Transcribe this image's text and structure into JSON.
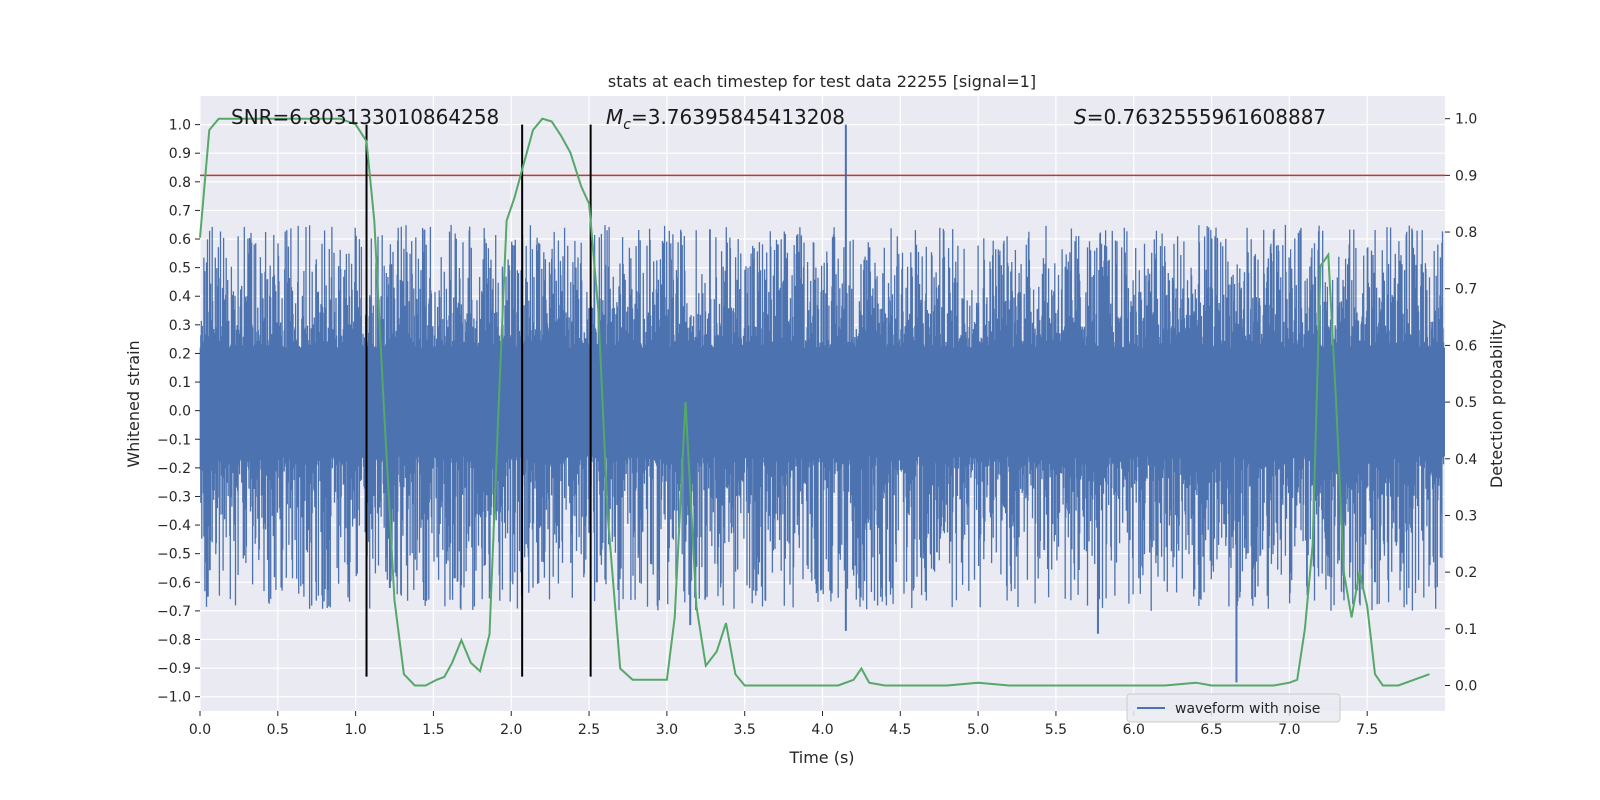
{
  "chart_data": {
    "type": "line",
    "title": "stats at each timestep for test data 22255 [signal=1]",
    "xlabel": "Time (s)",
    "ylabel": "Whitened strain",
    "y2label": "Detection probability",
    "xlim": [
      0.0,
      8.0
    ],
    "ylim": [
      -1.05,
      1.1
    ],
    "y2lim": [
      -0.045,
      1.04
    ],
    "x_ticks": [
      0.0,
      0.5,
      1.0,
      1.5,
      2.0,
      2.5,
      3.0,
      3.5,
      4.0,
      4.5,
      5.0,
      5.5,
      6.0,
      6.5,
      7.0,
      7.5
    ],
    "x_tick_labels": [
      "0.0",
      "0.5",
      "1.0",
      "1.5",
      "2.0",
      "2.5",
      "3.0",
      "3.5",
      "4.0",
      "4.5",
      "5.0",
      "5.5",
      "6.0",
      "6.5",
      "7.0",
      "7.5"
    ],
    "y_ticks": [
      1.0,
      0.9,
      0.8,
      0.7,
      0.6,
      0.5,
      0.4,
      0.3,
      0.2,
      0.1,
      0.0,
      -0.1,
      -0.2,
      -0.3,
      -0.4,
      -0.5,
      -0.6,
      -0.7,
      -0.8,
      -0.9,
      -1.0
    ],
    "y_tick_labels": [
      "1.0",
      "0.9",
      "0.8",
      "0.7",
      "0.6",
      "0.5",
      "0.4",
      "0.3",
      "0.2",
      "0.1",
      "0.0",
      "−0.1",
      "−0.2",
      "−0.3",
      "−0.4",
      "−0.5",
      "−0.6",
      "−0.7",
      "−0.8",
      "−0.9",
      "−1.0"
    ],
    "y2_ticks": [
      1.0,
      0.9,
      0.8,
      0.7,
      0.6,
      0.5,
      0.4,
      0.3,
      0.2,
      0.1,
      0.0
    ],
    "y2_tick_labels": [
      "1.0",
      "0.9",
      "0.8",
      "0.7",
      "0.6",
      "0.5",
      "0.4",
      "0.3",
      "0.2",
      "0.1",
      "0.0"
    ],
    "grid": true,
    "legend_position": "lower-right",
    "annotations": {
      "snr": "SNR=6.803133010864258",
      "mc_prefix": "M",
      "mc_sub": "c",
      "mc_value": "=3.76395845413208",
      "s_prefix": "S",
      "s_value": "=0.7632555961608887"
    },
    "threshold": {
      "value": 0.9,
      "axis": "right",
      "color": "#c0392b"
    },
    "vlines": [
      1.07,
      2.07,
      2.51
    ],
    "series": [
      {
        "name": "waveform with noise",
        "axis": "left",
        "color": "#4c72b0",
        "kind": "noise-envelope",
        "dense_band": [
          -0.16,
          0.22
        ],
        "outer_range": [
          -0.7,
          0.65
        ],
        "spikes": [
          {
            "x": 4.15,
            "y": 1.0
          },
          {
            "x": 4.15,
            "y": -0.77
          },
          {
            "x": 6.66,
            "y": -0.95
          },
          {
            "x": 0.05,
            "y": -0.65
          },
          {
            "x": 3.15,
            "y": -0.75
          },
          {
            "x": 5.77,
            "y": -0.78
          },
          {
            "x": 1.22,
            "y": -0.62
          },
          {
            "x": 2.55,
            "y": -0.6
          },
          {
            "x": 7.55,
            "y": -0.6
          }
        ]
      },
      {
        "name": "",
        "axis": "right",
        "color": "#55a868",
        "x": [
          0.0,
          0.06,
          0.12,
          0.2,
          0.3,
          0.4,
          0.5,
          0.6,
          0.7,
          0.8,
          0.9,
          1.0,
          1.07,
          1.12,
          1.18,
          1.25,
          1.31,
          1.38,
          1.45,
          1.52,
          1.57,
          1.62,
          1.68,
          1.74,
          1.8,
          1.86,
          1.92,
          1.97,
          2.02,
          2.08,
          2.14,
          2.2,
          2.26,
          2.32,
          2.38,
          2.45,
          2.5,
          2.56,
          2.62,
          2.7,
          2.78,
          2.9,
          3.0,
          3.05,
          3.12,
          3.19,
          3.25,
          3.32,
          3.38,
          3.44,
          3.5,
          3.7,
          3.9,
          4.1,
          4.2,
          4.25,
          4.3,
          4.4,
          4.6,
          4.8,
          5.0,
          5.2,
          5.4,
          5.6,
          5.8,
          6.0,
          6.2,
          6.4,
          6.5,
          6.6,
          6.7,
          6.8,
          6.9,
          7.0,
          7.05,
          7.1,
          7.15,
          7.2,
          7.25,
          7.3,
          7.35,
          7.4,
          7.45,
          7.5,
          7.55,
          7.6,
          7.7,
          7.8,
          7.9
        ],
        "values": [
          0.79,
          0.98,
          1.0,
          1.0,
          1.0,
          1.0,
          1.0,
          1.0,
          1.0,
          1.0,
          1.0,
          0.99,
          0.96,
          0.82,
          0.5,
          0.15,
          0.02,
          0.0,
          0.0,
          0.01,
          0.015,
          0.04,
          0.08,
          0.04,
          0.025,
          0.09,
          0.5,
          0.82,
          0.86,
          0.92,
          0.98,
          1.0,
          0.995,
          0.97,
          0.94,
          0.88,
          0.85,
          0.66,
          0.3,
          0.03,
          0.01,
          0.01,
          0.01,
          0.12,
          0.5,
          0.14,
          0.035,
          0.06,
          0.11,
          0.02,
          0.0,
          0.0,
          0.0,
          0.0,
          0.01,
          0.03,
          0.005,
          0.0,
          0.0,
          0.0,
          0.005,
          0.0,
          0.0,
          0.0,
          0.0,
          0.0,
          0.0,
          0.005,
          0.0,
          0.0,
          0.0,
          0.0,
          0.0,
          0.005,
          0.01,
          0.1,
          0.25,
          0.74,
          0.76,
          0.5,
          0.2,
          0.12,
          0.2,
          0.14,
          0.02,
          0.0,
          0.0,
          0.01,
          0.02
        ]
      }
    ]
  }
}
